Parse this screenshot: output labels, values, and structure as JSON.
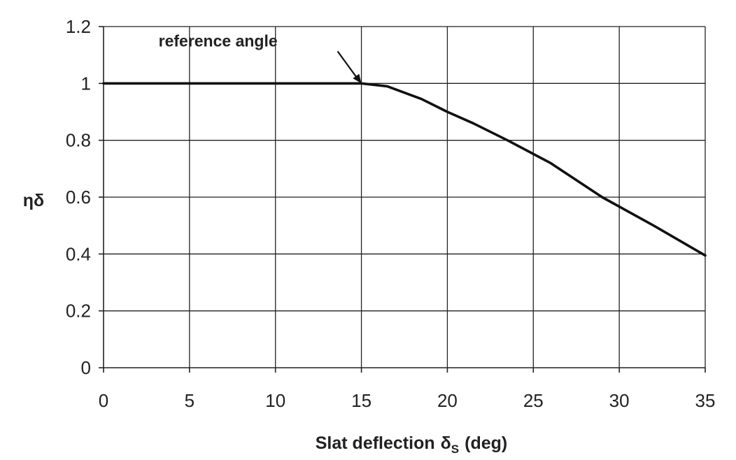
{
  "chart_data": {
    "type": "line",
    "title": "",
    "xlabel": "Slat deflection",
    "xlabel_symbol": "δ",
    "xlabel_subscript": "S",
    "xlabel_unit": "(deg)",
    "ylabel": "ηδ",
    "xlim": [
      0,
      35
    ],
    "ylim": [
      0,
      1.2
    ],
    "xticks": [
      0,
      5,
      10,
      15,
      20,
      25,
      30,
      35
    ],
    "yticks": [
      0,
      0.2,
      0.4,
      0.6,
      0.8,
      1,
      1.2
    ],
    "xtick_labels": [
      "0",
      "5",
      "10",
      "15",
      "20",
      "25",
      "30",
      "35"
    ],
    "ytick_labels": [
      "0",
      "0.2",
      "0.4",
      "0.6",
      "0.8",
      "1",
      "1.2"
    ],
    "grid": true,
    "legend": "none",
    "series": [
      {
        "x": [
          0,
          15,
          16.5,
          18.5,
          20,
          21.5,
          23.5,
          26,
          29,
          32,
          35
        ],
        "y": [
          1.0,
          1.0,
          0.99,
          0.945,
          0.9,
          0.86,
          0.8,
          0.72,
          0.6,
          0.5,
          0.395
        ]
      }
    ],
    "annotations": [
      {
        "text": "reference angle",
        "x": 15,
        "y": 1.0
      }
    ]
  }
}
